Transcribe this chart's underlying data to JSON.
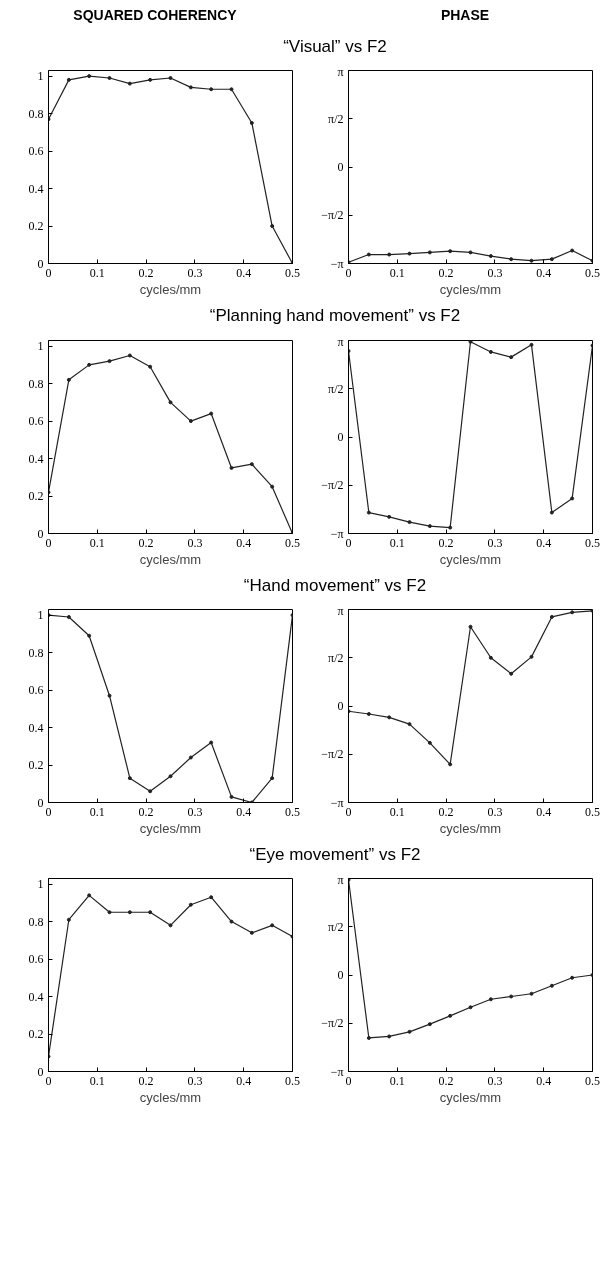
{
  "chart_data": [
    {
      "type": "line",
      "title": "SQUARED COHERENCY",
      "subtitle": "“Visual” vs F2",
      "xlabel": "cycles/mm",
      "marker": "circle",
      "line_style": "solid",
      "grid": false,
      "xlim": [
        0,
        0.5
      ],
      "xticks": [
        0,
        0.1,
        0.2,
        0.3,
        0.4,
        0.5
      ],
      "ylim": [
        0,
        1.03
      ],
      "yticks": [
        0,
        0.2,
        0.4,
        0.6,
        0.8,
        1
      ],
      "series": [
        {
          "color": "#222222",
          "x": [
            0,
            0.0417,
            0.0833,
            0.125,
            0.1667,
            0.2083,
            0.25,
            0.2917,
            0.3333,
            0.375,
            0.4167,
            0.4583,
            0.5
          ],
          "values": [
            0.77,
            0.98,
            1.0,
            0.99,
            0.96,
            0.98,
            0.99,
            0.94,
            0.93,
            0.93,
            0.75,
            0.2,
            0.0
          ]
        }
      ]
    },
    {
      "type": "line",
      "title": "PHASE",
      "xlabel": "cycles/mm",
      "marker": "circle",
      "line_style": "solid",
      "grid": false,
      "xlim": [
        0,
        0.5
      ],
      "xticks": [
        0,
        0.1,
        0.2,
        0.3,
        0.4,
        0.5
      ],
      "ylim": [
        -3.1416,
        3.1416
      ],
      "yticks": [
        {
          "value": -3.1416,
          "label": "−π"
        },
        {
          "value": -1.5708,
          "label": "−π/2"
        },
        0,
        {
          "value": 1.5708,
          "label": "π/2"
        },
        {
          "value": 3.1416,
          "label": "π"
        }
      ],
      "series": [
        {
          "color": "#222222",
          "x": [
            0,
            0.0417,
            0.0833,
            0.125,
            0.1667,
            0.2083,
            0.25,
            0.2917,
            0.3333,
            0.375,
            0.4167,
            0.4583,
            0.5
          ],
          "values": [
            -3.1,
            -2.85,
            -2.85,
            -2.82,
            -2.78,
            -2.74,
            -2.78,
            -2.9,
            -3.0,
            -3.05,
            -3.0,
            -2.72,
            -3.05
          ]
        }
      ]
    },
    {
      "type": "line",
      "subtitle": "“Planning hand movement” vs F2",
      "xlabel": "cycles/mm",
      "marker": "circle",
      "line_style": "solid",
      "grid": false,
      "xlim": [
        0,
        0.5
      ],
      "xticks": [
        0,
        0.1,
        0.2,
        0.3,
        0.4,
        0.5
      ],
      "ylim": [
        0,
        1.03
      ],
      "yticks": [
        0,
        0.2,
        0.4,
        0.6,
        0.8,
        1
      ],
      "series": [
        {
          "color": "#222222",
          "x": [
            0,
            0.0417,
            0.0833,
            0.125,
            0.1667,
            0.2083,
            0.25,
            0.2917,
            0.3333,
            0.375,
            0.4167,
            0.4583,
            0.5
          ],
          "values": [
            0.22,
            0.82,
            0.9,
            0.92,
            0.95,
            0.89,
            0.7,
            0.6,
            0.64,
            0.35,
            0.37,
            0.25,
            0.0
          ]
        }
      ]
    },
    {
      "type": "line",
      "xlabel": "cycles/mm",
      "marker": "circle",
      "line_style": "solid",
      "grid": false,
      "xlim": [
        0,
        0.5
      ],
      "xticks": [
        0,
        0.1,
        0.2,
        0.3,
        0.4,
        0.5
      ],
      "ylim": [
        -3.1416,
        3.1416
      ],
      "yticks": [
        {
          "value": -3.1416,
          "label": "−π"
        },
        {
          "value": -1.5708,
          "label": "−π/2"
        },
        0,
        {
          "value": 1.5708,
          "label": "π/2"
        },
        {
          "value": 3.1416,
          "label": "π"
        }
      ],
      "series": [
        {
          "color": "#222222",
          "x": [
            0,
            0.0417,
            0.0833,
            0.125,
            0.1667,
            0.2083,
            0.25,
            0.2917,
            0.3333,
            0.375,
            0.4167,
            0.4583,
            0.5
          ],
          "values": [
            2.8,
            -2.46,
            -2.6,
            -2.77,
            -2.9,
            -2.95,
            3.1,
            2.77,
            2.6,
            3.0,
            -2.46,
            -2.0,
            2.98
          ]
        }
      ]
    },
    {
      "type": "line",
      "subtitle": "“Hand movement” vs F2",
      "xlabel": "cycles/mm",
      "marker": "circle",
      "line_style": "solid",
      "grid": false,
      "xlim": [
        0,
        0.5
      ],
      "xticks": [
        0,
        0.1,
        0.2,
        0.3,
        0.4,
        0.5
      ],
      "ylim": [
        0,
        1.03
      ],
      "yticks": [
        0,
        0.2,
        0.4,
        0.6,
        0.8,
        1
      ],
      "series": [
        {
          "color": "#222222",
          "x": [
            0,
            0.0417,
            0.0833,
            0.125,
            0.1667,
            0.2083,
            0.25,
            0.2917,
            0.3333,
            0.375,
            0.4167,
            0.4583,
            0.5
          ],
          "values": [
            1.0,
            0.99,
            0.89,
            0.57,
            0.13,
            0.06,
            0.14,
            0.24,
            0.32,
            0.03,
            0.0,
            0.13,
            1.0
          ]
        }
      ]
    },
    {
      "type": "line",
      "xlabel": "cycles/mm",
      "marker": "circle",
      "line_style": "solid",
      "grid": false,
      "xlim": [
        0,
        0.5
      ],
      "xticks": [
        0,
        0.1,
        0.2,
        0.3,
        0.4,
        0.5
      ],
      "ylim": [
        -3.1416,
        3.1416
      ],
      "yticks": [
        {
          "value": -3.1416,
          "label": "−π"
        },
        {
          "value": -1.5708,
          "label": "−π/2"
        },
        0,
        {
          "value": 1.5708,
          "label": "π/2"
        },
        {
          "value": 3.1416,
          "label": "π"
        }
      ],
      "series": [
        {
          "color": "#222222",
          "x": [
            0,
            0.0417,
            0.0833,
            0.125,
            0.1667,
            0.2083,
            0.25,
            0.2917,
            0.3333,
            0.375,
            0.4167,
            0.4583,
            0.5
          ],
          "values": [
            -0.17,
            -0.26,
            -0.37,
            -0.59,
            -1.2,
            -1.9,
            2.58,
            1.57,
            1.05,
            1.6,
            2.9,
            3.05,
            3.1
          ]
        }
      ]
    },
    {
      "type": "line",
      "subtitle": "“Eye movement” vs F2",
      "xlabel": "cycles/mm",
      "marker": "circle",
      "line_style": "solid",
      "grid": false,
      "xlim": [
        0,
        0.5
      ],
      "xticks": [
        0,
        0.1,
        0.2,
        0.3,
        0.4,
        0.5
      ],
      "ylim": [
        0,
        1.03
      ],
      "yticks": [
        0,
        0.2,
        0.4,
        0.6,
        0.8,
        1
      ],
      "series": [
        {
          "color": "#222222",
          "x": [
            0,
            0.0417,
            0.0833,
            0.125,
            0.1667,
            0.2083,
            0.25,
            0.2917,
            0.3333,
            0.375,
            0.4167,
            0.4583,
            0.5
          ],
          "values": [
            0.08,
            0.81,
            0.94,
            0.85,
            0.85,
            0.85,
            0.78,
            0.89,
            0.93,
            0.8,
            0.74,
            0.78,
            0.72
          ]
        }
      ]
    },
    {
      "type": "line",
      "xlabel": "cycles/mm",
      "marker": "circle",
      "line_style": "solid",
      "grid": false,
      "xlim": [
        0,
        0.5
      ],
      "xticks": [
        0,
        0.1,
        0.2,
        0.3,
        0.4,
        0.5
      ],
      "ylim": [
        -3.1416,
        3.1416
      ],
      "yticks": [
        {
          "value": -3.1416,
          "label": "−π"
        },
        {
          "value": -1.5708,
          "label": "−π/2"
        },
        0,
        {
          "value": 1.5708,
          "label": "π/2"
        },
        {
          "value": 3.1416,
          "label": "π"
        }
      ],
      "series": [
        {
          "color": "#222222",
          "x": [
            0,
            0.0417,
            0.0833,
            0.125,
            0.1667,
            0.2083,
            0.25,
            0.2917,
            0.3333,
            0.375,
            0.4167,
            0.4583,
            0.5
          ],
          "values": [
            3.1,
            -2.05,
            -2.0,
            -1.85,
            -1.6,
            -1.33,
            -1.05,
            -0.79,
            -0.7,
            -0.61,
            -0.35,
            -0.09,
            0.0
          ]
        }
      ]
    }
  ]
}
